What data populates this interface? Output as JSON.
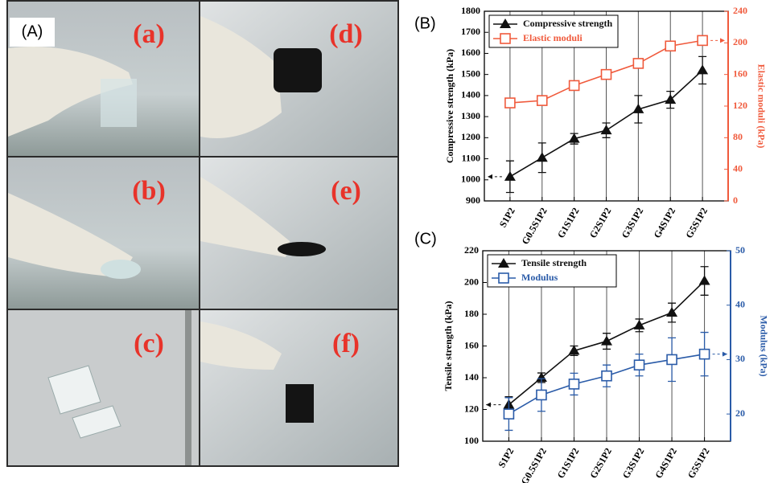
{
  "photo": {
    "panel_label": "(A)",
    "labels": [
      "(a)",
      "(d)",
      "(b)",
      "(e)",
      "(c)",
      "(f)"
    ]
  },
  "chart_data": [
    {
      "type": "line",
      "panel_label": "(B)",
      "categories": [
        "S1P2",
        "G0.5S1P2",
        "G1S1P2",
        "G2S1P2",
        "G3S1P2",
        "G4S1P2",
        "G5S1P2"
      ],
      "ylabel": "Compressive strength (kPa)",
      "y2label": "Elastic moduli (kPa)",
      "ylim": [
        900,
        1800
      ],
      "yticks": [
        900,
        1000,
        1100,
        1200,
        1300,
        1400,
        1500,
        1600,
        1700,
        1800
      ],
      "y2lim": [
        0,
        240
      ],
      "y2ticks": [
        0,
        40,
        80,
        120,
        160,
        200,
        240
      ],
      "y2_color": "#f05a3c",
      "legend": "upper left",
      "series": [
        {
          "name": "Compressive strength",
          "color": "#111111",
          "marker": "triangle",
          "values": [
            1015,
            1105,
            1195,
            1235,
            1335,
            1380,
            1520
          ],
          "errors": [
            75,
            70,
            25,
            35,
            65,
            40,
            65
          ]
        },
        {
          "name": "Elastic moduli",
          "color": "#f05a3c",
          "marker": "square",
          "axis": "y2",
          "values": [
            124,
            127,
            146,
            160,
            174,
            196,
            203
          ],
          "errors": [
            5,
            5,
            5,
            5,
            6,
            5,
            6
          ]
        }
      ]
    },
    {
      "type": "line",
      "panel_label": "(C)",
      "categories": [
        "S1P2",
        "G0.5S1P2",
        "G1S1P2",
        "G2S1P2",
        "G3S1P2",
        "G4S1P2",
        "G5S1P2"
      ],
      "ylabel": "Tensile strength (kPa)",
      "y2label": "Modulus (kPa)",
      "ylim": [
        100,
        220
      ],
      "yticks": [
        100,
        120,
        140,
        160,
        180,
        200,
        220
      ],
      "y2lim": [
        15,
        50
      ],
      "y2ticks": [
        20,
        30,
        40,
        50
      ],
      "y2_color": "#2a5ba8",
      "legend": "upper left",
      "series": [
        {
          "name": "Tensile strength",
          "color": "#111111",
          "marker": "triangle",
          "values": [
            123,
            140,
            157,
            163,
            173,
            181,
            201
          ],
          "errors": [
            5,
            3,
            3,
            5,
            4,
            6,
            9
          ]
        },
        {
          "name": "Modulus",
          "color": "#2a5ba8",
          "marker": "square",
          "axis": "y2",
          "values": [
            20,
            23.5,
            25.5,
            27,
            29,
            30,
            31
          ],
          "errors": [
            3,
            3,
            2,
            2,
            2,
            4,
            4
          ]
        }
      ]
    }
  ]
}
